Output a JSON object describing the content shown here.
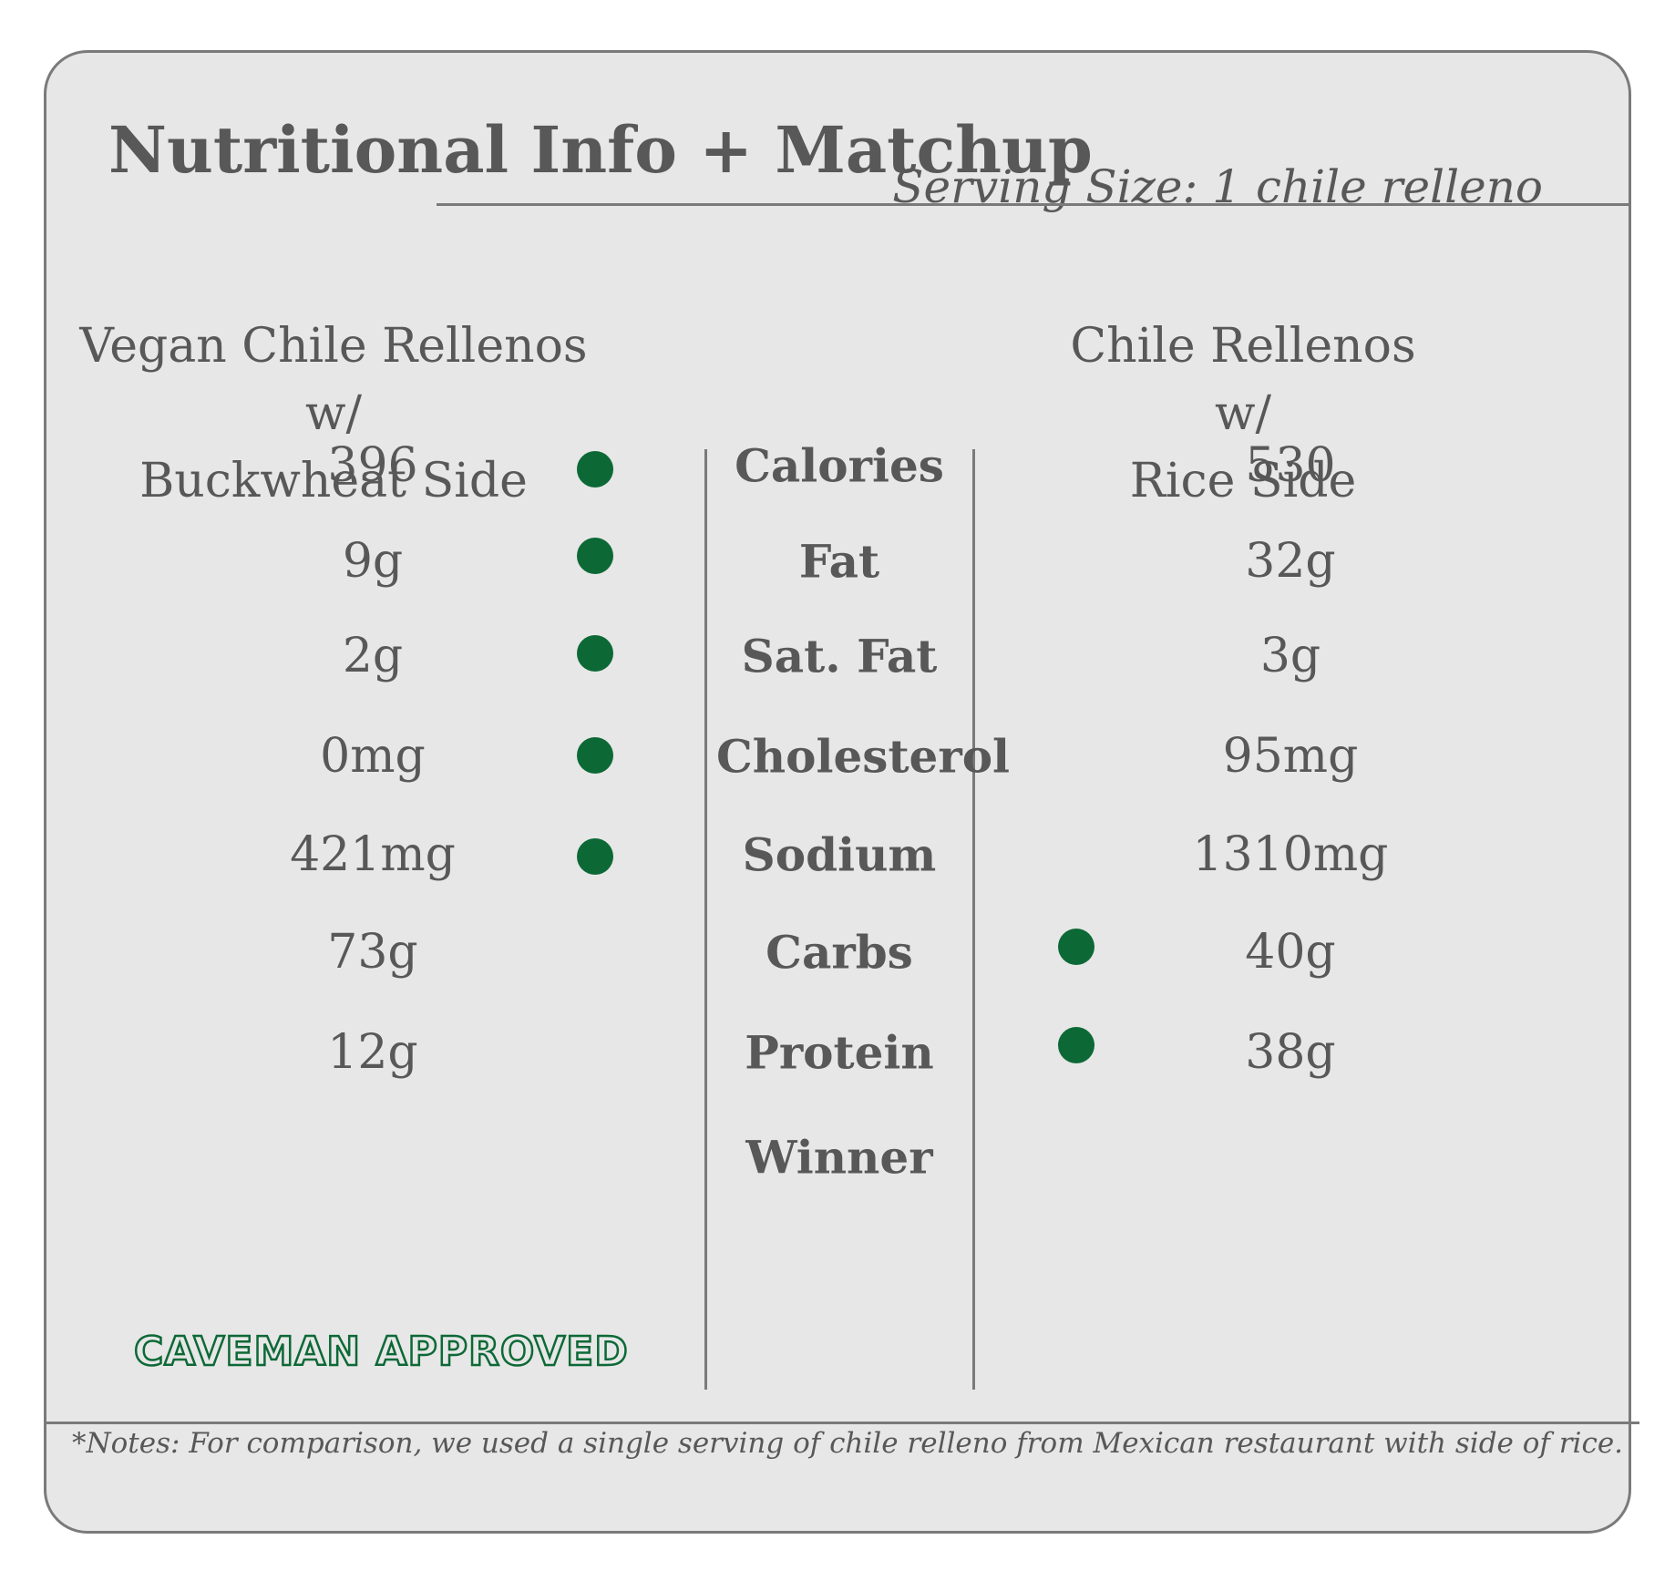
{
  "header": {
    "title": "Nutritional Info + Matchup",
    "serving_size": "Serving Size: 1 chile relleno"
  },
  "columns": {
    "left": {
      "line1": "Vegan Chile Rellenos w/",
      "line2": "Buckwheat Side"
    },
    "right": {
      "line1": "Chile Rellenos w/",
      "line2": "Rice Side"
    }
  },
  "rows": [
    {
      "label": "Calories",
      "left": "396",
      "right": "530",
      "winner": "left"
    },
    {
      "label": "Fat",
      "left": "9g",
      "right": "32g",
      "winner": "left"
    },
    {
      "label": "Sat. Fat",
      "left": "2g",
      "right": "3g",
      "winner": "left"
    },
    {
      "label": "Cholesterol",
      "left": "0mg",
      "right": "95mg",
      "winner": "left"
    },
    {
      "label": "Sodium",
      "left": "421mg",
      "right": "1310mg",
      "winner": "left"
    },
    {
      "label": "Carbs",
      "left": "73g",
      "right": "40g",
      "winner": "right"
    },
    {
      "label": "Protein",
      "left": "12g",
      "right": "38g",
      "winner": "right"
    }
  ],
  "winner_row": {
    "label": "Winner",
    "badge": "CAVEMAN APPROVED"
  },
  "notes": "*Notes: For comparison, we used a single serving of chile relleno from Mexican restaurant with side of rice.",
  "colors": {
    "winner_dot": "#0c6936",
    "border": "#7a7a7a",
    "background": "#e7e7e7",
    "text": "#585858"
  }
}
